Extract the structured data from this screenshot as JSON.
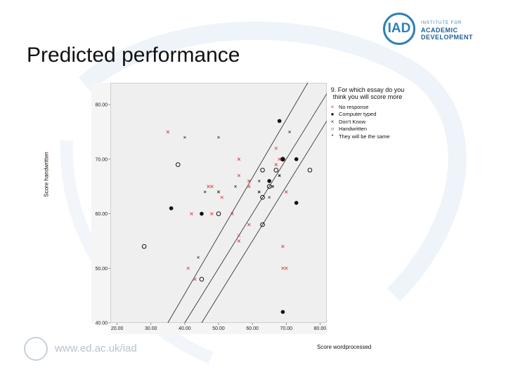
{
  "slide": {
    "title": "Predicted performance",
    "footer_url": "www.ed.ac.uk/iad",
    "logo": {
      "mark": "IAD",
      "line1": "INSTITUTE FOR",
      "line2": "ACADEMIC",
      "line3": "DEVELOPMENT",
      "color": "#2f7fb8"
    }
  },
  "chart_data": {
    "type": "scatter",
    "xlabel": "Score wordprocessed",
    "ylabel": "Score handwritten",
    "xlim": [
      18,
      82
    ],
    "ylim": [
      40,
      84
    ],
    "x_ticks": [
      "20.00",
      "30.00",
      "40.00",
      "50.00",
      "60.00",
      "70.00",
      "80.00"
    ],
    "y_ticks": [
      "40.00",
      "50.00",
      "60.00",
      "70.00",
      "80.00"
    ],
    "x_tick_values": [
      20,
      30,
      40,
      50,
      60,
      70,
      80
    ],
    "y_tick_values": [
      40,
      50,
      60,
      70,
      80
    ],
    "legend_title": "9. For which essay do you think you will score more",
    "series": [
      {
        "name": "No response",
        "marker": "x",
        "color": "#d43c3c",
        "points": [
          [
            35,
            75
          ],
          [
            50,
            64
          ],
          [
            56,
            70
          ],
          [
            56,
            67
          ],
          [
            59,
            66
          ],
          [
            59,
            65
          ],
          [
            47,
            65
          ],
          [
            48,
            65
          ],
          [
            51,
            63
          ],
          [
            67,
            72
          ],
          [
            68,
            70
          ],
          [
            67,
            69
          ],
          [
            70,
            64
          ],
          [
            42,
            60
          ],
          [
            48,
            60
          ],
          [
            54,
            60
          ],
          [
            56,
            56
          ],
          [
            56,
            55
          ],
          [
            59,
            58
          ],
          [
            69,
            54
          ],
          [
            69,
            50
          ],
          [
            70,
            50
          ],
          [
            41,
            50
          ],
          [
            43,
            48
          ]
        ]
      },
      {
        "name": "Computer typed",
        "marker": "filled-circle",
        "color": "#111111",
        "points": [
          [
            68,
            77
          ],
          [
            65,
            66
          ],
          [
            69,
            70
          ],
          [
            73,
            70
          ],
          [
            36,
            61
          ],
          [
            45,
            60
          ],
          [
            73,
            62
          ],
          [
            69,
            42
          ]
        ]
      },
      {
        "name": "Don't Know",
        "marker": "small-x",
        "color": "#333333",
        "points": [
          [
            40,
            74
          ],
          [
            50,
            74
          ],
          [
            46,
            64
          ],
          [
            50,
            64
          ],
          [
            55,
            65
          ],
          [
            62,
            66
          ],
          [
            65,
            63
          ],
          [
            44,
            52
          ],
          [
            71,
            75
          ],
          [
            68,
            67
          ]
        ]
      },
      {
        "name": "Handwritten",
        "marker": "open-circle",
        "color": "#111111",
        "points": [
          [
            38,
            69
          ],
          [
            63,
            68
          ],
          [
            65,
            65
          ],
          [
            67,
            68
          ],
          [
            77,
            68
          ],
          [
            63,
            63
          ],
          [
            50,
            60
          ],
          [
            63,
            58
          ],
          [
            28,
            54
          ],
          [
            45,
            48
          ],
          [
            69,
            70
          ]
        ]
      },
      {
        "name": "They will be the same",
        "marker": "asterisk",
        "color": "#333333",
        "points": [
          [
            68,
            67
          ],
          [
            66,
            65
          ],
          [
            62,
            64
          ]
        ]
      }
    ],
    "reference_lines": [
      {
        "name": "lower-bound-line",
        "points": [
          [
            35,
            40
          ],
          [
            82,
            90
          ]
        ]
      },
      {
        "name": "identity-line",
        "points": [
          [
            40,
            40
          ],
          [
            82,
            82
          ]
        ]
      },
      {
        "name": "upper-bound-line",
        "points": [
          [
            45,
            40
          ],
          [
            82,
            77
          ]
        ]
      }
    ]
  }
}
